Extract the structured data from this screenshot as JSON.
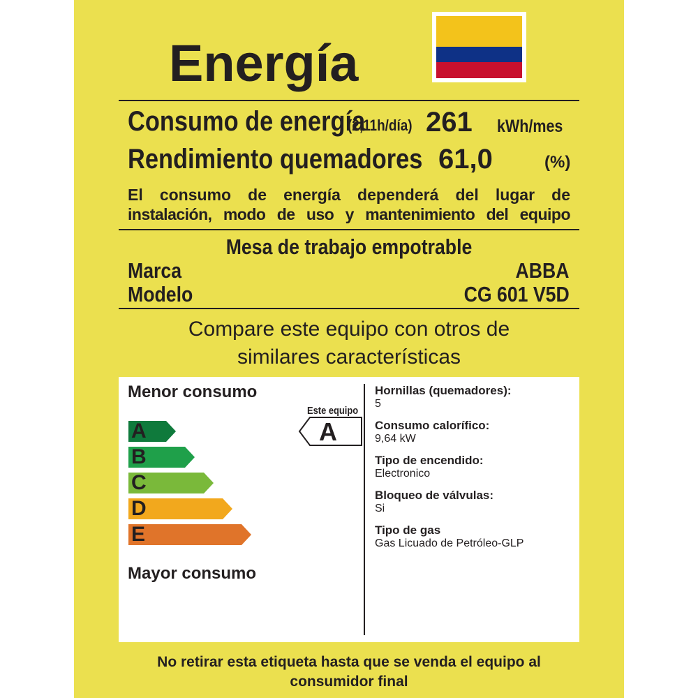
{
  "title": "Energía",
  "flag_colors": [
    "#f3c31b",
    "#0e3186",
    "#c8102e"
  ],
  "consumo": {
    "label": "Consumo de energía",
    "hours": "(2,11h/día)",
    "value": "261",
    "unit": "kWh/mes"
  },
  "rendimiento": {
    "label": "Rendimiento quemadores",
    "value": "61,0",
    "unit": "(%)"
  },
  "disclaimer": [
    "El consumo de energía dependerá del lugar de",
    "instalación, modo de uso y mantenimiento del equipo"
  ],
  "product": {
    "type": "Mesa de trabajo empotrable",
    "marca_label": "Marca",
    "marca": "ABBA",
    "modelo_label": "Modelo",
    "modelo": "CG 601 V5D"
  },
  "compare": [
    "Compare este equipo con otros de",
    "similares características"
  ],
  "scale": {
    "top": "Menor consumo",
    "bottom": "Mayor consumo",
    "grades": [
      {
        "letter": "A",
        "color": "#0f7a3c"
      },
      {
        "letter": "B",
        "color": "#1fa04a"
      },
      {
        "letter": "C",
        "color": "#7ab93a"
      },
      {
        "letter": "D",
        "color": "#f2a81d"
      },
      {
        "letter": "E",
        "color": "#e0742a"
      }
    ],
    "this_label": "Este equipo",
    "this_grade": "A"
  },
  "specs": [
    {
      "k": "Hornillas (quemadores):",
      "v": "5"
    },
    {
      "k": "Consumo calorífico:",
      "v": "9,64 kW"
    },
    {
      "k": "Tipo de encendido:",
      "v": "Electronico"
    },
    {
      "k": "Bloqueo de válvulas:",
      "v": "Si"
    },
    {
      "k": "Tipo de gas",
      "v": "Gas Licuado de Petróleo-GLP"
    }
  ],
  "footer": [
    "No retirar esta etiqueta hasta que se venda el equipo al",
    "consumidor final"
  ]
}
